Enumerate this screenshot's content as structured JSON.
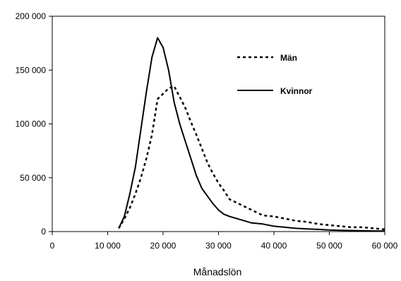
{
  "chart_data": {
    "type": "line",
    "title": "",
    "xlabel": "Månadslön",
    "ylabel": "",
    "xlim": [
      0,
      60000
    ],
    "ylim": [
      0,
      200000
    ],
    "x_ticks": [
      0,
      10000,
      20000,
      30000,
      40000,
      50000,
      60000
    ],
    "x_tick_labels": [
      "0",
      "10 000",
      "20 000",
      "30 000",
      "40 000",
      "50 000",
      "60 000"
    ],
    "y_ticks": [
      0,
      50000,
      100000,
      150000,
      200000
    ],
    "y_tick_labels": [
      "0",
      "50 000",
      "100 000",
      "150 000",
      "200 000"
    ],
    "grid": false,
    "legend_position": "top-right",
    "series": [
      {
        "name": "Män",
        "style": "dotted",
        "color": "#000000",
        "x": [
          12000,
          13000,
          14000,
          15000,
          16000,
          17000,
          18000,
          19000,
          20000,
          21000,
          22000,
          23000,
          24000,
          25000,
          26000,
          27000,
          28000,
          29000,
          30000,
          31000,
          32000,
          34000,
          36000,
          38000,
          40000,
          42000,
          44000,
          46000,
          48000,
          50000,
          52000,
          54000,
          56000,
          58000,
          60000
        ],
        "y": [
          3000,
          12000,
          22000,
          35000,
          50000,
          68000,
          90000,
          123000,
          128000,
          133000,
          135000,
          125000,
          115000,
          102000,
          90000,
          77000,
          64000,
          54000,
          45000,
          38000,
          30000,
          25000,
          20000,
          15000,
          14000,
          12000,
          10000,
          9000,
          7000,
          6000,
          5000,
          4000,
          4000,
          3000,
          2000
        ]
      },
      {
        "name": "Kvinnor",
        "style": "solid",
        "color": "#000000",
        "x": [
          12000,
          13000,
          14000,
          15000,
          16000,
          17000,
          18000,
          19000,
          20000,
          21000,
          22000,
          23000,
          24000,
          25000,
          26000,
          27000,
          28000,
          29000,
          30000,
          31000,
          32000,
          34000,
          36000,
          38000,
          40000,
          42000,
          44000,
          46000,
          48000,
          50000,
          52000,
          54000,
          56000,
          58000,
          60000
        ],
        "y": [
          3000,
          14000,
          35000,
          60000,
          95000,
          130000,
          162000,
          180000,
          171000,
          150000,
          120000,
          100000,
          84000,
          68000,
          52000,
          40000,
          33000,
          26000,
          20000,
          16000,
          14000,
          11000,
          8000,
          7000,
          5000,
          4000,
          3000,
          2500,
          2000,
          1500,
          1200,
          1000,
          800,
          600,
          500
        ]
      }
    ]
  }
}
